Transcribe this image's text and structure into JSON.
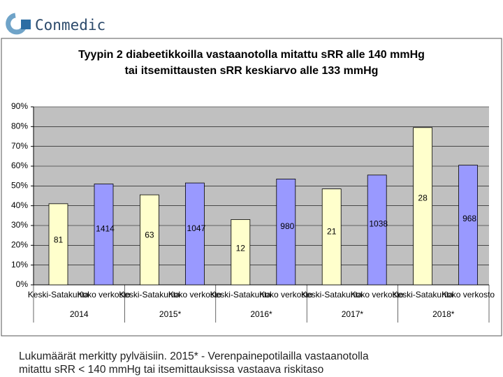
{
  "logo": "Conmedic",
  "chart_data": {
    "type": "bar",
    "title": [
      "Tyypin 2 diabeetikkoilla vastaanotolla mitattu sRR alle 140 mmHg",
      "tai itsemittausten sRR keskiarvo alle 133 mmHg"
    ],
    "categories": [
      "2014",
      "2015*",
      "2016*",
      "2017*",
      "2018*"
    ],
    "series": [
      {
        "name": "Keski-Satakunta",
        "color": "#ffffcc",
        "values": [
          41,
          45.5,
          33,
          48.5,
          79.5
        ],
        "counts": [
          81,
          63,
          12,
          21,
          28
        ]
      },
      {
        "name": "Koko verkosto",
        "color": "#9999ff",
        "values": [
          51,
          51.5,
          53.5,
          55.5,
          60.5
        ],
        "counts": [
          1414,
          1047,
          980,
          1038,
          968
        ]
      }
    ],
    "ylim": [
      0,
      90
    ],
    "yticks": [
      {
        "value": 0,
        "label": "0%"
      },
      {
        "value": 10,
        "label": "10%"
      },
      {
        "value": 20,
        "label": "20%"
      },
      {
        "value": 30,
        "label": "30%"
      },
      {
        "value": 40,
        "label": "40%"
      },
      {
        "value": 50,
        "label": "50%"
      },
      {
        "value": 60,
        "label": "60%"
      },
      {
        "value": 70,
        "label": "70%"
      },
      {
        "value": 80,
        "label": "80%"
      },
      {
        "value": 90,
        "label": "90%"
      }
    ],
    "grid": true
  },
  "footnote": [
    "Lukumäärät merkitty pylväisiin. 2015* - Verenpainepotilailla vastaanotolla",
    "mitattu sRR < 140 mmHg tai itsemittauksissa vastaava riskitaso"
  ]
}
